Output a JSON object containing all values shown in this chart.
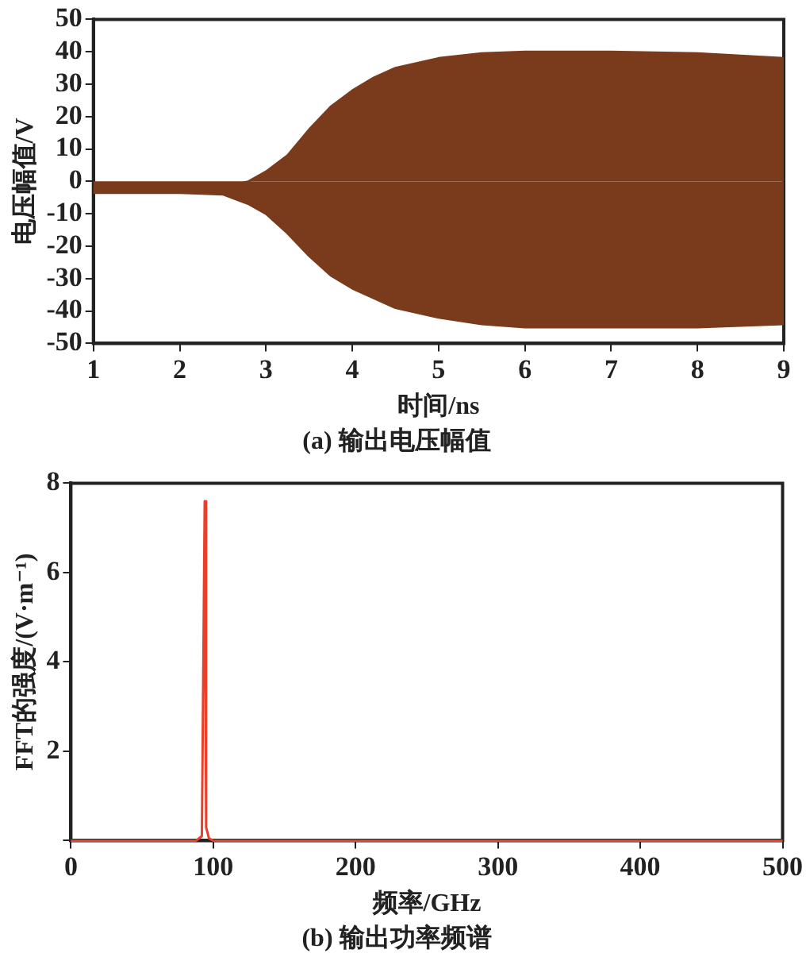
{
  "chart_data": [
    {
      "type": "area",
      "title": "(a) 输出电压幅值",
      "xlabel": "时间/ns",
      "ylabel": "电压幅值/V",
      "xlim": [
        1,
        9
      ],
      "xticks": [
        1,
        2,
        3,
        4,
        5,
        6,
        7,
        8,
        9
      ],
      "ylim": [
        -50,
        50
      ],
      "yticks": [
        -50,
        -40,
        -30,
        -20,
        -10,
        0,
        10,
        20,
        30,
        40,
        50
      ],
      "grid": false,
      "legend": false,
      "series": [
        {
          "color": "#7a3b1c",
          "x": [
            1,
            2,
            2.5,
            2.8,
            3,
            3.25,
            3.5,
            3.75,
            4,
            4.25,
            4.5,
            5,
            5.5,
            6,
            7,
            8,
            9
          ],
          "values": [
            -2.5,
            -2.5,
            -2,
            0,
            3,
            8,
            16,
            23,
            28,
            32,
            35,
            38,
            39.5,
            40,
            40,
            39.5,
            38
          ]
        },
        {
          "color": "#7a3b1c",
          "x": [
            1,
            2,
            2.5,
            2.8,
            3,
            3.25,
            3.5,
            3.75,
            4,
            4.25,
            4.5,
            5,
            5.5,
            6,
            7,
            8,
            9
          ],
          "values": [
            -3.5,
            -3.5,
            -4,
            -7,
            -10,
            -16,
            -23,
            -29,
            -33,
            -36,
            -39,
            -42,
            -44,
            -45,
            -45,
            -45,
            -44
          ]
        }
      ]
    },
    {
      "type": "line",
      "title": "(b) 输出功率频谱",
      "xlabel": "频率/GHz",
      "ylabel": "FFT的强度/(V·m⁻¹)",
      "xlim": [
        0,
        500
      ],
      "xticks": [
        0,
        100,
        200,
        300,
        400,
        500
      ],
      "ylim": [
        0,
        8
      ],
      "yticks": [
        {
          "value": 0,
          "label": null
        },
        2,
        4,
        6,
        8
      ],
      "grid": false,
      "legend": false,
      "series": [
        {
          "color": "#e8402a",
          "x": [
            0,
            88,
            92,
            94,
            95,
            97,
            100,
            500
          ],
          "values": [
            0,
            0,
            0.1,
            7.6,
            0.3,
            0.05,
            0,
            0
          ]
        }
      ]
    }
  ]
}
